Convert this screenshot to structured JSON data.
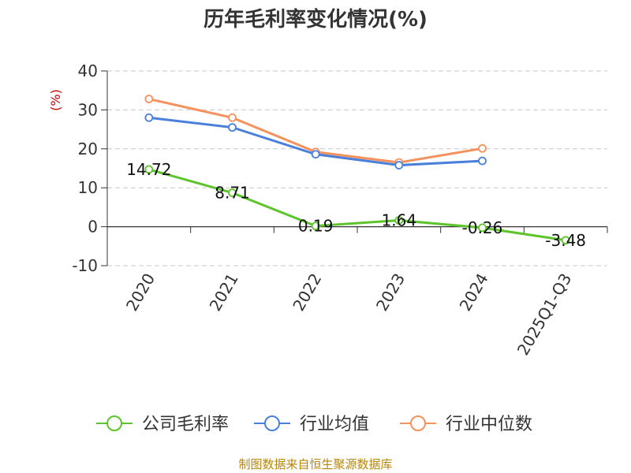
{
  "chart_data": {
    "type": "line",
    "title": "历年毛利率变化情况(%)",
    "ylabel": "(%)",
    "categories": [
      "2020",
      "2021",
      "2022",
      "2023",
      "2024",
      "2025Q1-Q3"
    ],
    "ylim": [
      -10,
      40
    ],
    "yticks": [
      -10,
      0,
      10,
      20,
      30,
      40
    ],
    "grid": true,
    "legend_position": "bottom",
    "series": [
      {
        "name": "公司毛利率",
        "color": "#5ec42c",
        "values": [
          14.72,
          8.71,
          0.19,
          1.64,
          -0.26,
          -3.48
        ],
        "labels": [
          "14.72",
          "8.71",
          "0.19",
          "1.64",
          "-0.26",
          "-3.48"
        ],
        "show_labels": true
      },
      {
        "name": "行业均值",
        "color": "#4a7fdb",
        "values": [
          28.0,
          25.5,
          18.6,
          15.8,
          16.9,
          null
        ],
        "show_labels": false
      },
      {
        "name": "行业中位数",
        "color": "#f5915c",
        "values": [
          32.8,
          28.0,
          19.2,
          16.5,
          20.1,
          null
        ],
        "show_labels": false
      }
    ]
  },
  "source_text": "制图数据来自恒生聚源数据库"
}
